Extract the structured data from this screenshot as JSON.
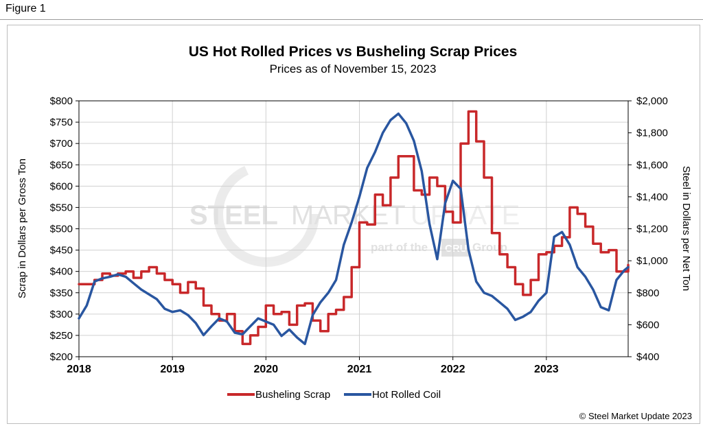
{
  "figure_label": "Figure 1",
  "copyright": "© Steel Market Update 2023",
  "watermark": {
    "brand_bold": "STEEL",
    "brand_mid": "MARKET",
    "brand_light": "UPDATE",
    "tagline_prefix": "part of the",
    "tagline_logo": "CRU",
    "tagline_suffix": "Group"
  },
  "colors": {
    "scrap": "#c8282a",
    "hrc": "#2956a0"
  },
  "chart_data": {
    "type": "line",
    "title": "US Hot Rolled Prices vs Busheling Scrap Prices",
    "subtitle": "Prices as of November 15, 2023",
    "xlabel": "",
    "ylabel_left": "Scrap in Dollars per Gross Ton",
    "ylabel_right": "Steel in Dollars per Net Ton",
    "xlim": [
      2018,
      2023.875
    ],
    "ylim_left": [
      200,
      800
    ],
    "ylim_right": [
      400,
      2000
    ],
    "x_ticks": [
      "2018",
      "2019",
      "2020",
      "2021",
      "2022",
      "2023"
    ],
    "y_ticks_left": [
      "$200",
      "$250",
      "$300",
      "$350",
      "$400",
      "$450",
      "$500",
      "$550",
      "$600",
      "$650",
      "$700",
      "$750",
      "$800"
    ],
    "y_ticks_right": [
      "$400",
      "$600",
      "$800",
      "$1,000",
      "$1,200",
      "$1,400",
      "$1,600",
      "$1,800",
      "$2,000"
    ],
    "grid": true,
    "legend": "bottom-center",
    "series": [
      {
        "name": "Busheling Scrap",
        "axis": "left",
        "step": true,
        "x": [
          2018.0,
          2018.167,
          2018.25,
          2018.333,
          2018.417,
          2018.5,
          2018.583,
          2018.667,
          2018.75,
          2018.833,
          2018.917,
          2019.0,
          2019.083,
          2019.167,
          2019.25,
          2019.333,
          2019.417,
          2019.5,
          2019.583,
          2019.667,
          2019.75,
          2019.833,
          2019.917,
          2020.0,
          2020.083,
          2020.167,
          2020.25,
          2020.333,
          2020.417,
          2020.5,
          2020.583,
          2020.667,
          2020.75,
          2020.833,
          2020.917,
          2021.0,
          2021.083,
          2021.167,
          2021.25,
          2021.333,
          2021.417,
          2021.5,
          2021.583,
          2021.667,
          2021.75,
          2021.833,
          2021.917,
          2022.0,
          2022.083,
          2022.167,
          2022.25,
          2022.333,
          2022.417,
          2022.5,
          2022.583,
          2022.667,
          2022.75,
          2022.833,
          2022.917,
          2023.0
        ],
        "values": [
          370,
          380,
          395,
          390,
          395,
          400,
          385,
          400,
          410,
          395,
          380,
          370,
          350,
          375,
          360,
          320,
          300,
          285,
          300,
          260,
          230,
          250,
          270,
          320,
          300,
          305,
          275,
          320,
          325,
          285,
          260,
          300,
          310,
          340,
          410,
          515,
          510,
          580,
          555,
          620,
          670,
          670,
          590,
          580,
          620,
          600,
          540,
          515,
          700,
          775,
          705,
          620,
          490,
          440,
          410,
          370,
          345,
          380,
          440,
          445
        ],
        "x_tail": [
          2023.083,
          2023.167,
          2023.25,
          2023.333,
          2023.417,
          2023.5,
          2023.583,
          2023.667,
          2023.75,
          2023.833,
          2023.875
        ],
        "values_tail": [
          460,
          480,
          550,
          535,
          505,
          465,
          445,
          450,
          400,
          400,
          415
        ]
      },
      {
        "name": "Hot Rolled Coil",
        "axis": "right",
        "step": false,
        "x": [
          2018.0,
          2018.083,
          2018.167,
          2018.25,
          2018.333,
          2018.417,
          2018.5,
          2018.583,
          2018.667,
          2018.75,
          2018.833,
          2018.917,
          2019.0,
          2019.083,
          2019.167,
          2019.25,
          2019.333,
          2019.417,
          2019.5,
          2019.583,
          2019.667,
          2019.75,
          2019.833,
          2019.917,
          2020.0,
          2020.083,
          2020.167,
          2020.25,
          2020.333,
          2020.417,
          2020.5,
          2020.583,
          2020.667,
          2020.75,
          2020.833,
          2020.917,
          2021.0,
          2021.083,
          2021.167,
          2021.25,
          2021.333,
          2021.417,
          2021.5,
          2021.583,
          2021.667,
          2021.75,
          2021.833,
          2021.917,
          2022.0,
          2022.083,
          2022.167,
          2022.25,
          2022.333,
          2022.417,
          2022.5,
          2022.583,
          2022.667,
          2022.75,
          2022.833,
          2022.917,
          2023.0,
          2023.083,
          2023.167,
          2023.25,
          2023.333,
          2023.417,
          2023.5,
          2023.583,
          2023.667,
          2023.75,
          2023.833,
          2023.875
        ],
        "values": [
          640,
          720,
          870,
          890,
          900,
          915,
          900,
          860,
          820,
          790,
          760,
          700,
          680,
          690,
          660,
          610,
          535,
          590,
          640,
          620,
          550,
          540,
          590,
          640,
          620,
          600,
          530,
          570,
          520,
          480,
          660,
          740,
          800,
          880,
          1100,
          1240,
          1400,
          1580,
          1680,
          1800,
          1880,
          1920,
          1860,
          1750,
          1560,
          1230,
          1010,
          1360,
          1500,
          1450,
          1070,
          870,
          800,
          780,
          740,
          700,
          630,
          650,
          680,
          750,
          800,
          1150,
          1180,
          1100,
          960,
          900,
          820,
          710,
          690,
          880,
          940,
          960
        ],
        "values_corrected": []
      }
    ]
  }
}
